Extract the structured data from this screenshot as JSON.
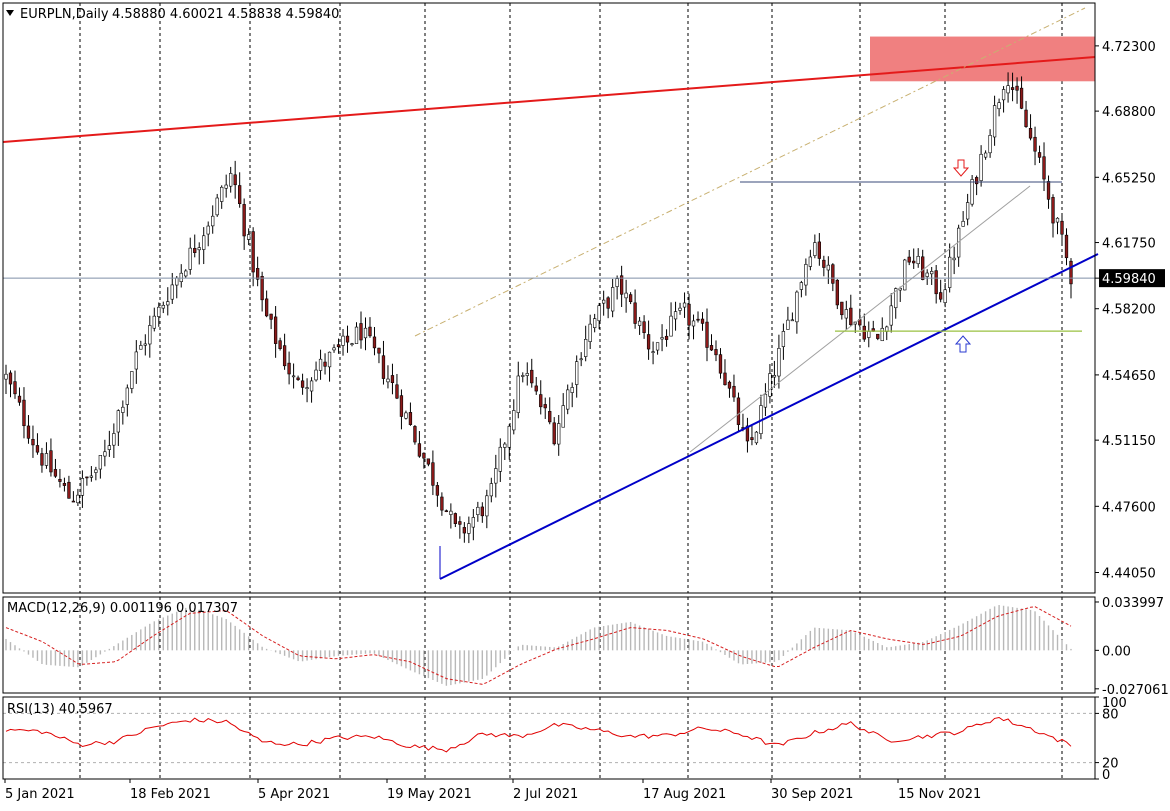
{
  "header": {
    "symbol": "EURPLN,Daily",
    "ohlc": "4.58880 4.60021 4.58838 4.59840"
  },
  "macd_header": "MACD(12,26,9) 0.001196 0.017307",
  "rsi_header": "RSI(13) 40.5967",
  "colors": {
    "bull_candle": "#3a6e3a",
    "bear_candle": "#8b1a1a",
    "resistance_line": "#e41a1a",
    "support_line": "#0000c8",
    "zone_fill": "#f08080",
    "price_line": "#7f8fa6",
    "macd_signal": "#d62020",
    "rsi_line": "#e00000"
  },
  "chart_data": [
    {
      "type": "candlestick",
      "symbol": "EURPLN",
      "timeframe": "Daily",
      "last_price": "4.59840",
      "price_axis_labels": [
        "4.72300",
        "4.68800",
        "4.65250",
        "4.61750",
        "4.58200",
        "4.54650",
        "4.51150",
        "4.47600",
        "4.44050"
      ],
      "ylim": [
        4.4295,
        4.746
      ],
      "x_axis_labels": [
        "5 Jan 2021",
        "18 Feb 2021",
        "5 Apr 2021",
        "19 May 2021",
        "2 Jul 2021",
        "17 Aug 2021",
        "30 Sep 2021",
        "15 Nov 2021"
      ],
      "anchors": [
        {
          "label": "Jan 2021",
          "close": 4.545
        },
        {
          "label": "Jan 2021",
          "close": 4.505
        },
        {
          "label": "Feb 2021",
          "close": 4.48
        },
        {
          "label": "Feb 2021",
          "close": 4.5
        },
        {
          "label": "Feb 2021",
          "close": 4.555
        },
        {
          "label": "Mar 2021",
          "close": 4.59
        },
        {
          "label": "Mar 2021",
          "close": 4.62
        },
        {
          "label": "Mar 2021",
          "close": 4.655
        },
        {
          "label": "Apr 2021",
          "close": 4.58
        },
        {
          "label": "Apr 2021",
          "close": 4.54
        },
        {
          "label": "Apr 2021",
          "close": 4.555
        },
        {
          "label": "May 2021",
          "close": 4.57
        },
        {
          "label": "May 2021",
          "close": 4.54
        },
        {
          "label": "May 2021",
          "close": 4.5
        },
        {
          "label": "May 2021",
          "close": 4.46
        },
        {
          "label": "Jun 2021",
          "close": 4.48
        },
        {
          "label": "Jun 2021",
          "close": 4.55
        },
        {
          "label": "Jun 2021",
          "close": 4.515
        },
        {
          "label": "Jul 2021",
          "close": 4.57
        },
        {
          "label": "Jul 2021",
          "close": 4.595
        },
        {
          "label": "Jul 2021",
          "close": 4.56
        },
        {
          "label": "Aug 2021",
          "close": 4.58
        },
        {
          "label": "Aug 2021",
          "close": 4.56
        },
        {
          "label": "Aug 2021",
          "close": 4.505
        },
        {
          "label": "Sep 2021",
          "close": 4.56
        },
        {
          "label": "Sep 2021",
          "close": 4.62
        },
        {
          "label": "Sep 2021",
          "close": 4.58
        },
        {
          "label": "Oct 2021",
          "close": 4.565
        },
        {
          "label": "Oct 2021",
          "close": 4.61
        },
        {
          "label": "Oct 2021",
          "close": 4.59
        },
        {
          "label": "Nov 2021",
          "close": 4.65
        },
        {
          "label": "Nov 2021",
          "close": 4.71
        },
        {
          "label": "Nov 2021",
          "close": 4.66
        },
        {
          "label": "Nov 2021",
          "close": 4.6
        }
      ],
      "annotations": {
        "resistance_zone": [
          4.704,
          4.728
        ],
        "horizontal_levels": [
          4.65,
          4.57
        ],
        "arrows": [
          "down",
          "up"
        ]
      }
    },
    {
      "type": "histogram+line",
      "name": "MACD(12,26,9)",
      "values_text": "0.001196 0.017307",
      "axis_labels": [
        "0.033997",
        "0.00",
        "-0.027061"
      ],
      "ylim": [
        -0.03,
        0.0375
      ],
      "macd_anchors": [
        0.008,
        -0.01,
        -0.012,
        0.004,
        0.02,
        0.031,
        0.022,
        0.002,
        -0.008,
        -0.004,
        -0.002,
        -0.014,
        -0.025,
        -0.02,
        0.004,
        0.002,
        0.016,
        0.02,
        0.01,
        0.006,
        -0.01,
        -0.008,
        0.016,
        0.014,
        0.002,
        0.006,
        0.018,
        0.032,
        0.028,
        0.001
      ],
      "signal_anchors": [
        0.016,
        0.006,
        -0.01,
        -0.008,
        0.01,
        0.026,
        0.028,
        0.01,
        -0.004,
        -0.006,
        -0.003,
        -0.008,
        -0.02,
        -0.024,
        -0.01,
        0.001,
        0.008,
        0.016,
        0.014,
        0.008,
        -0.004,
        -0.012,
        0.002,
        0.014,
        0.008,
        0.004,
        0.01,
        0.024,
        0.031,
        0.017
      ]
    },
    {
      "type": "line",
      "name": "RSI(13)",
      "value_text": "40.5967",
      "axis_labels": [
        "100",
        "80",
        "20",
        "0"
      ],
      "ylim": [
        0,
        100
      ],
      "levels": [
        80,
        20
      ],
      "rsi_anchors": [
        60,
        58,
        42,
        46,
        63,
        72,
        70,
        45,
        42,
        50,
        52,
        40,
        36,
        55,
        52,
        66,
        60,
        52,
        53,
        62,
        55,
        40,
        56,
        68,
        47,
        52,
        58,
        75,
        60,
        41
      ]
    }
  ]
}
